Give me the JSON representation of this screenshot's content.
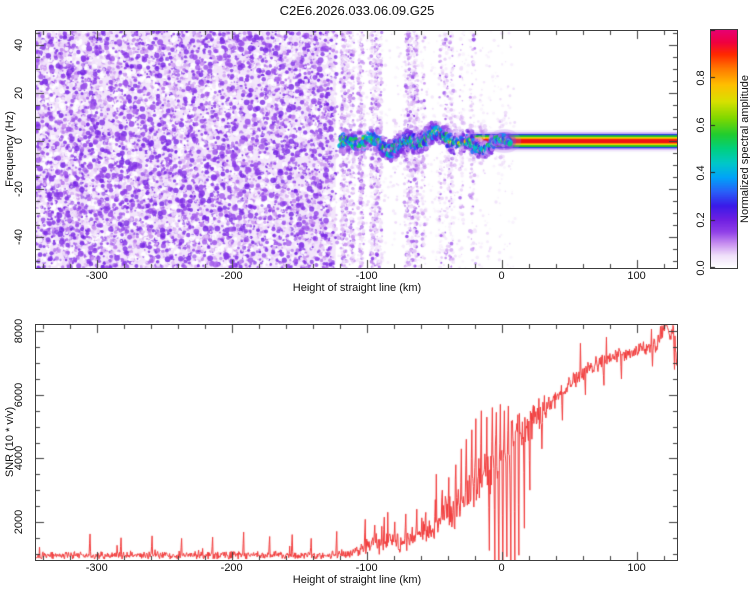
{
  "title": "C2E6.2026.033.06.09.G25",
  "frame_color": "#3c3c3c",
  "background": "#ffffff",
  "chart_data": [
    {
      "type": "heatmap",
      "panel": "top",
      "title": "",
      "xlabel": "Height of straight line (km)",
      "ylabel": "Frequency (Hz)",
      "xlim": [
        -345,
        130
      ],
      "ylim": [
        -53,
        46
      ],
      "xticks": [
        -300,
        -200,
        -100,
        0,
        100
      ],
      "xtick_minor_step": 20,
      "yticks": [
        40,
        20,
        0,
        -20,
        -40
      ],
      "ytick_minor_step": 5,
      "grid": false,
      "colorbar": {
        "label": "Normalized spectral amplitude",
        "tick_labels": [
          "0.0",
          "0.2",
          "0.4",
          "0.6",
          "0.8"
        ],
        "tick_values": [
          0,
          0.2,
          0.4,
          0.6,
          0.8
        ],
        "range": [
          0,
          1
        ]
      },
      "colormap": [
        [
          0.0,
          "#ffffff"
        ],
        [
          0.05,
          "#f0e0fa"
        ],
        [
          0.1,
          "#c890f0"
        ],
        [
          0.15,
          "#9040e8"
        ],
        [
          0.2,
          "#7020e2"
        ],
        [
          0.26,
          "#3a1ae8"
        ],
        [
          0.32,
          "#2860f8"
        ],
        [
          0.38,
          "#00a4f8"
        ],
        [
          0.44,
          "#00c8c8"
        ],
        [
          0.5,
          "#00d080"
        ],
        [
          0.56,
          "#20cc30"
        ],
        [
          0.63,
          "#80d800"
        ],
        [
          0.7,
          "#d8e000"
        ],
        [
          0.77,
          "#ffc000"
        ],
        [
          0.84,
          "#ff7800"
        ],
        [
          0.9,
          "#ff2800"
        ],
        [
          0.95,
          "#f00040"
        ],
        [
          1.0,
          "#e80070"
        ]
      ],
      "content": {
        "noise_region": {
          "x_from": -345,
          "x_to": -120,
          "amplitude_range": [
            0,
            0.2
          ]
        },
        "streak_region": {
          "x_from": -120,
          "x_to": -8,
          "streak_count": 24
        },
        "echo_trace": {
          "x_from": -119,
          "x_to": 6,
          "center_freq_hz": -0.5,
          "wander_hz": 4,
          "amplitude_range": [
            0.1,
            0.95
          ]
        },
        "carrier_stripe": {
          "x_from": -25,
          "x_to": 130,
          "center_freq_hz": 0,
          "halfwidth_hz": 3,
          "bands_out_to_in": [
            "blue",
            "green",
            "yellow",
            "orange",
            "red-core"
          ]
        },
        "onset_blob": {
          "x_km": 2,
          "color": "violet-blue halo"
        }
      }
    },
    {
      "type": "line",
      "panel": "bottom",
      "title": "",
      "xlabel": "Height of straight line (km)",
      "ylabel": "SNR (10 * v/v)",
      "xlim": [
        -345,
        130
      ],
      "ylim": [
        800,
        8200
      ],
      "xticks": [
        -300,
        -200,
        -100,
        0,
        100
      ],
      "xtick_minor_step": 20,
      "yticks": [
        2000,
        4000,
        6000,
        8000
      ],
      "ytick_minor_step": 500,
      "grid": false,
      "series": [
        {
          "name": "SNR",
          "color": "#f23c3c",
          "envelope": [
            [
              -345,
              950
            ],
            [
              -300,
              935
            ],
            [
              -250,
              955
            ],
            [
              -200,
              940
            ],
            [
              -160,
              945
            ],
            [
              -130,
              940
            ],
            [
              -118,
              960
            ],
            [
              -108,
              1020
            ],
            [
              -100,
              1250
            ],
            [
              -95,
              1420
            ],
            [
              -90,
              1280
            ],
            [
              -85,
              1400
            ],
            [
              -80,
              1350
            ],
            [
              -75,
              1280
            ],
            [
              -70,
              1420
            ],
            [
              -65,
              1550
            ],
            [
              -60,
              1700
            ],
            [
              -55,
              1620
            ],
            [
              -50,
              1800
            ],
            [
              -45,
              2050
            ],
            [
              -40,
              2300
            ],
            [
              -36,
              2150
            ],
            [
              -32,
              2500
            ],
            [
              -28,
              2800
            ],
            [
              -24,
              3000
            ],
            [
              -20,
              3200
            ],
            [
              -16,
              3350
            ],
            [
              -12,
              3500
            ],
            [
              -8,
              3650
            ],
            [
              -4,
              3800
            ],
            [
              0,
              4000
            ],
            [
              4,
              4200
            ],
            [
              8,
              4400
            ],
            [
              12,
              4650
            ],
            [
              16,
              4850
            ],
            [
              20,
              5050
            ],
            [
              25,
              5300
            ],
            [
              30,
              5500
            ],
            [
              35,
              5700
            ],
            [
              40,
              5900
            ],
            [
              45,
              6050
            ],
            [
              50,
              6300
            ],
            [
              55,
              6500
            ],
            [
              60,
              6700
            ],
            [
              65,
              6850
            ],
            [
              70,
              6950
            ],
            [
              75,
              7050
            ],
            [
              80,
              7150
            ],
            [
              85,
              7250
            ],
            [
              90,
              7300
            ],
            [
              95,
              7350
            ],
            [
              100,
              7420
            ],
            [
              105,
              7480
            ],
            [
              110,
              7500
            ],
            [
              114,
              7560
            ],
            [
              118,
              7900
            ],
            [
              121,
              8150
            ],
            [
              123,
              8050
            ],
            [
              125,
              7850
            ],
            [
              127,
              8000
            ],
            [
              129,
              7450
            ],
            [
              130,
              6950
            ]
          ],
          "noise_amp": [
            [
              -345,
              150
            ],
            [
              -200,
              150
            ],
            [
              -130,
              160
            ],
            [
              -115,
              220
            ],
            [
              -100,
              320
            ],
            [
              -90,
              360
            ],
            [
              -80,
              380
            ],
            [
              -70,
              420
            ],
            [
              -60,
              480
            ],
            [
              -50,
              560
            ],
            [
              -42,
              650
            ],
            [
              -35,
              750
            ],
            [
              -28,
              850
            ],
            [
              -20,
              950
            ],
            [
              -12,
              1000
            ],
            [
              -5,
              1050
            ],
            [
              2,
              1000
            ],
            [
              8,
              950
            ],
            [
              14,
              820
            ],
            [
              20,
              700
            ],
            [
              26,
              580
            ],
            [
              32,
              480
            ],
            [
              40,
              400
            ],
            [
              50,
              340
            ],
            [
              60,
              310
            ],
            [
              75,
              290
            ],
            [
              90,
              280
            ],
            [
              105,
              290
            ],
            [
              115,
              320
            ],
            [
              122,
              380
            ],
            [
              127,
              350
            ],
            [
              130,
              380
            ]
          ],
          "spikes": [
            [
              -305,
              1620
            ],
            [
              -282,
              1500
            ],
            [
              -259,
              1560
            ],
            [
              -237,
              1480
            ],
            [
              -214,
              1520
            ],
            [
              -191,
              1680
            ],
            [
              -172,
              1540
            ],
            [
              -155,
              1600
            ],
            [
              -141,
              1480
            ],
            [
              -122,
              1700
            ],
            [
              -101,
              2080
            ],
            [
              -94,
              1900
            ],
            [
              -87,
              2150
            ],
            [
              -79,
              2000
            ],
            [
              -71,
              2250
            ],
            [
              -63,
              2400
            ],
            [
              -56,
              2300
            ],
            [
              -49,
              2700
            ],
            [
              -44,
              3000
            ],
            [
              -39,
              3400
            ],
            [
              -34,
              3800
            ],
            [
              -30,
              4300
            ],
            [
              -26,
              4600
            ],
            [
              -22,
              4900
            ],
            [
              -19,
              5250
            ],
            [
              -15,
              5500
            ],
            [
              -11,
              5300
            ],
            [
              -7,
              5600
            ],
            [
              -4,
              5450
            ],
            [
              -1,
              5700
            ],
            [
              2,
              5500
            ],
            [
              5,
              5650
            ],
            [
              8,
              5200
            ],
            [
              11,
              4900
            ],
            [
              120.5,
              8190
            ],
            [
              122,
              8190
            ]
          ],
          "dips": [
            [
              -9,
              1100
            ],
            [
              -5,
              700
            ],
            [
              -2,
              450
            ],
            [
              1,
              300
            ],
            [
              4,
              900
            ],
            [
              7,
              250
            ],
            [
              10,
              650
            ],
            [
              13,
              950
            ],
            [
              17,
              1800
            ],
            [
              21,
              3000
            ],
            [
              30,
              4300
            ],
            [
              45,
              5200
            ],
            [
              62,
              6000
            ],
            [
              76,
              6300
            ],
            [
              89,
              6500
            ],
            [
              112,
              6900
            ],
            [
              128,
              6800
            ]
          ]
        }
      ]
    }
  ]
}
